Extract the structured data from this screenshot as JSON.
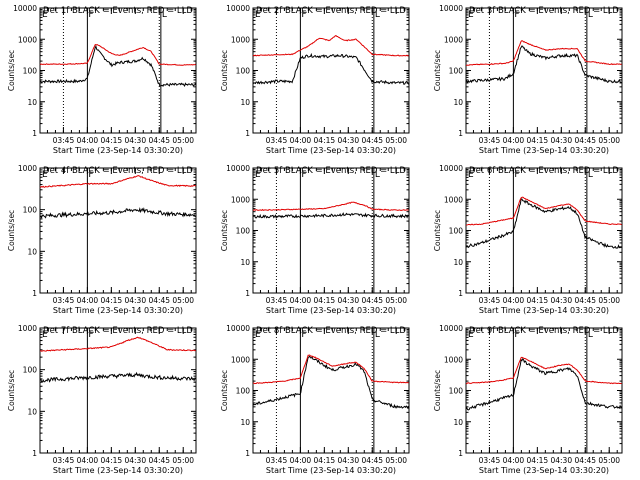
{
  "figure": {
    "colors": {
      "events": "#000000",
      "lld": "#e00000",
      "axes": "#000000",
      "background": "#ffffff"
    }
  },
  "chart_data": [
    {
      "type": "line",
      "title": "Det 1f BLACK = Events, RED = LLD",
      "xlabel": "Start Time (23-Sep-14 03:30:20)",
      "ylabel": "Counts/sec",
      "y_scale": "log",
      "ylim": [
        1,
        10000
      ],
      "y_ticks": [
        "1",
        "10",
        "100",
        "1000",
        "10000"
      ],
      "x_ticks": [
        "03:45",
        "04:00",
        "04:15",
        "04:30",
        "04:45",
        "05:00"
      ],
      "markers": [
        {
          "label": "",
          "style": "dotted",
          "x": "03:45"
        },
        {
          "label": "F",
          "style": "solid",
          "x": "04:00"
        },
        {
          "label": "",
          "style": "dotted",
          "x": "04:45"
        },
        {
          "label": "L",
          "style": "solid",
          "x": "04:46"
        }
      ],
      "corner_label": "E",
      "series": [
        {
          "name": "Events",
          "color": "#000000",
          "x": [
            "03:30",
            "03:45",
            "03:55",
            "04:00",
            "04:05",
            "04:08",
            "04:15",
            "04:20",
            "04:30",
            "04:35",
            "04:40",
            "04:45",
            "05:00",
            "05:08"
          ],
          "values": [
            45,
            45,
            45,
            55,
            600,
            350,
            150,
            180,
            200,
            250,
            150,
            35,
            35,
            35
          ]
        },
        {
          "name": "LLD",
          "color": "#e00000",
          "x": [
            "03:30",
            "03:45",
            "03:55",
            "04:00",
            "04:05",
            "04:08",
            "04:15",
            "04:20",
            "04:30",
            "04:35",
            "04:40",
            "04:45",
            "05:00",
            "05:08"
          ],
          "values": [
            160,
            160,
            165,
            170,
            700,
            600,
            350,
            300,
            450,
            550,
            400,
            160,
            150,
            155
          ]
        }
      ]
    },
    {
      "type": "line",
      "title": "Det 2f BLACK = Events, RED = LLD",
      "xlabel": "Start Time (23-Sep-14 03:30:20)",
      "ylabel": "Counts/sec",
      "y_scale": "log",
      "ylim": [
        1,
        10000
      ],
      "y_ticks": [
        "1",
        "10",
        "100",
        "1000",
        "10000"
      ],
      "x_ticks": [
        "03:45",
        "04:00",
        "04:15",
        "04:30",
        "04:45",
        "05:00"
      ],
      "markers": [
        {
          "label": "",
          "style": "dotted",
          "x": "03:45"
        },
        {
          "label": "F",
          "style": "solid",
          "x": "04:00"
        },
        {
          "label": "",
          "style": "dotted",
          "x": "04:45"
        },
        {
          "label": "L",
          "style": "solid",
          "x": "04:46"
        }
      ],
      "corner_label": "E",
      "series": [
        {
          "name": "Events",
          "color": "#000000",
          "x": [
            "03:30",
            "03:45",
            "03:55",
            "04:00",
            "04:05",
            "04:15",
            "04:25",
            "04:35",
            "04:45",
            "05:00",
            "05:08"
          ],
          "values": [
            40,
            45,
            45,
            250,
            300,
            280,
            300,
            260,
            45,
            40,
            40
          ]
        },
        {
          "name": "LLD",
          "color": "#e00000",
          "x": [
            "03:30",
            "03:45",
            "03:55",
            "04:00",
            "04:05",
            "04:12",
            "04:18",
            "04:22",
            "04:28",
            "04:35",
            "04:45",
            "05:00",
            "05:08"
          ],
          "values": [
            300,
            320,
            330,
            450,
            600,
            1100,
            900,
            1300,
            900,
            1000,
            330,
            300,
            300
          ]
        }
      ]
    },
    {
      "type": "line",
      "title": "Det 3f BLACK = Events, RED = LLD",
      "xlabel": "Start Time (23-Sep-14 03:30:20)",
      "ylabel": "Counts/sec",
      "y_scale": "log",
      "ylim": [
        1,
        10000
      ],
      "y_ticks": [
        "1",
        "10",
        "100",
        "1000",
        "10000"
      ],
      "x_ticks": [
        "03:45",
        "04:00",
        "04:15",
        "04:30",
        "04:45",
        "05:00"
      ],
      "markers": [
        {
          "label": "",
          "style": "dotted",
          "x": "03:45"
        },
        {
          "label": "F",
          "style": "solid",
          "x": "04:00"
        },
        {
          "label": "",
          "style": "dotted",
          "x": "04:45"
        },
        {
          "label": "L",
          "style": "solid",
          "x": "04:46"
        }
      ],
      "corner_label": "E",
      "series": [
        {
          "name": "Events",
          "color": "#000000",
          "x": [
            "03:30",
            "03:45",
            "03:55",
            "04:00",
            "04:05",
            "04:10",
            "04:20",
            "04:30",
            "04:40",
            "04:45",
            "05:00",
            "05:08"
          ],
          "values": [
            45,
            50,
            55,
            80,
            600,
            350,
            250,
            300,
            300,
            70,
            45,
            45
          ]
        },
        {
          "name": "LLD",
          "color": "#e00000",
          "x": [
            "03:30",
            "03:45",
            "03:55",
            "04:00",
            "04:05",
            "04:10",
            "04:20",
            "04:30",
            "04:40",
            "04:45",
            "05:00",
            "05:08"
          ],
          "values": [
            150,
            160,
            170,
            200,
            900,
            700,
            450,
            500,
            500,
            200,
            160,
            160
          ]
        }
      ]
    },
    {
      "type": "line",
      "title": "Det 4f BLACK = Events, RED = LLD",
      "xlabel": "Start Time (23-Sep-14 03:30:20)",
      "ylabel": "Counts/sec",
      "y_scale": "log",
      "ylim": [
        1,
        1000
      ],
      "y_ticks": [
        "1",
        "10",
        "100",
        "1000"
      ],
      "x_ticks": [
        "03:45",
        "04:00",
        "04:15",
        "04:30",
        "04:45",
        "05:00"
      ],
      "markers": [
        {
          "label": "F",
          "style": "solid",
          "x": "04:00"
        }
      ],
      "corner_label": "E",
      "series": [
        {
          "name": "Events",
          "color": "#000000",
          "x": [
            "03:30",
            "03:45",
            "04:00",
            "04:15",
            "04:30",
            "04:40",
            "04:50",
            "05:08"
          ],
          "values": [
            70,
            75,
            80,
            85,
            100,
            90,
            80,
            75
          ]
        },
        {
          "name": "LLD",
          "color": "#e00000",
          "x": [
            "03:30",
            "03:45",
            "04:00",
            "04:15",
            "04:25",
            "04:32",
            "04:40",
            "04:50",
            "05:08"
          ],
          "values": [
            350,
            380,
            420,
            420,
            550,
            650,
            500,
            380,
            370
          ]
        }
      ]
    },
    {
      "type": "line",
      "title": "Det 5f BLACK = Events, RED = LLD",
      "xlabel": "Start Time (23-Sep-14 03:30:20)",
      "ylabel": "Counts/sec",
      "y_scale": "log",
      "ylim": [
        1,
        10000
      ],
      "y_ticks": [
        "1",
        "10",
        "100",
        "1000",
        "10000"
      ],
      "x_ticks": [
        "03:45",
        "04:00",
        "04:15",
        "04:30",
        "04:45",
        "05:00"
      ],
      "markers": [
        {
          "label": "",
          "style": "dotted",
          "x": "03:45"
        },
        {
          "label": "F",
          "style": "solid",
          "x": "04:00"
        },
        {
          "label": "",
          "style": "dotted",
          "x": "04:45"
        },
        {
          "label": "L",
          "style": "solid",
          "x": "04:46"
        }
      ],
      "corner_label": "E",
      "series": [
        {
          "name": "Events",
          "color": "#000000",
          "x": [
            "03:30",
            "03:45",
            "04:00",
            "04:15",
            "04:30",
            "04:45",
            "05:00",
            "05:08"
          ],
          "values": [
            280,
            280,
            290,
            300,
            330,
            300,
            290,
            290
          ]
        },
        {
          "name": "LLD",
          "color": "#e00000",
          "x": [
            "03:30",
            "03:45",
            "04:00",
            "04:15",
            "04:25",
            "04:33",
            "04:40",
            "04:45",
            "05:00",
            "05:08"
          ],
          "values": [
            450,
            460,
            480,
            500,
            650,
            800,
            650,
            480,
            450,
            450
          ]
        }
      ]
    },
    {
      "type": "line",
      "title": "Det 6f BLACK = Events, RED = LLD",
      "xlabel": "Start Time (23-Sep-14 03:30:20)",
      "ylabel": "Counts/sec",
      "y_scale": "log",
      "ylim": [
        1,
        10000
      ],
      "y_ticks": [
        "1",
        "10",
        "100",
        "1000",
        "10000"
      ],
      "x_ticks": [
        "03:45",
        "04:00",
        "04:15",
        "04:30",
        "04:45",
        "05:00"
      ],
      "markers": [
        {
          "label": "",
          "style": "dotted",
          "x": "03:45"
        },
        {
          "label": "F",
          "style": "solid",
          "x": "04:00"
        },
        {
          "label": "",
          "style": "dotted",
          "x": "04:45"
        },
        {
          "label": "L",
          "style": "solid",
          "x": "04:46"
        }
      ],
      "corner_label": "E",
      "series": [
        {
          "name": "Events",
          "color": "#000000",
          "x": [
            "03:30",
            "03:40",
            "03:50",
            "04:00",
            "04:05",
            "04:10",
            "04:20",
            "04:30",
            "04:35",
            "04:40",
            "04:45",
            "05:00",
            "05:08"
          ],
          "values": [
            30,
            40,
            60,
            90,
            1000,
            700,
            400,
            500,
            550,
            350,
            60,
            30,
            30
          ]
        },
        {
          "name": "LLD",
          "color": "#e00000",
          "x": [
            "03:30",
            "03:40",
            "03:50",
            "04:00",
            "04:05",
            "04:10",
            "04:20",
            "04:30",
            "04:35",
            "04:40",
            "04:45",
            "05:00",
            "05:08"
          ],
          "values": [
            150,
            160,
            200,
            250,
            1200,
            900,
            500,
            650,
            700,
            450,
            200,
            160,
            160
          ]
        }
      ]
    },
    {
      "type": "line",
      "title": "Det 7f BLACK = Events, RED = LLD",
      "xlabel": "Start Time (23-Sep-14 03:30:20)",
      "ylabel": "Counts/sec",
      "y_scale": "log",
      "ylim": [
        1,
        1000
      ],
      "y_ticks": [
        "1",
        "10",
        "100",
        "1000"
      ],
      "x_ticks": [
        "03:45",
        "04:00",
        "04:15",
        "04:30",
        "04:45",
        "05:00"
      ],
      "markers": [
        {
          "label": "F",
          "style": "solid",
          "x": "04:00"
        }
      ],
      "corner_label": "E",
      "series": [
        {
          "name": "Events",
          "color": "#000000",
          "x": [
            "03:30",
            "03:45",
            "04:00",
            "04:15",
            "04:30",
            "04:45",
            "05:08"
          ],
          "values": [
            55,
            60,
            65,
            70,
            75,
            65,
            60
          ]
        },
        {
          "name": "LLD",
          "color": "#e00000",
          "x": [
            "03:30",
            "03:45",
            "04:00",
            "04:15",
            "04:25",
            "04:32",
            "04:40",
            "04:50",
            "05:08"
          ],
          "values": [
            280,
            300,
            320,
            350,
            500,
            600,
            450,
            300,
            290
          ]
        }
      ]
    },
    {
      "type": "line",
      "title": "Det 8f BLACK = Events, RED = LLD",
      "xlabel": "Start Time (23-Sep-14 03:30:20)",
      "ylabel": "Counts/sec",
      "y_scale": "log",
      "ylim": [
        1,
        10000
      ],
      "y_ticks": [
        "1",
        "10",
        "100",
        "1000",
        "10000"
      ],
      "x_ticks": [
        "03:45",
        "04:00",
        "04:15",
        "04:30",
        "04:45",
        "05:00"
      ],
      "markers": [
        {
          "label": "",
          "style": "dotted",
          "x": "03:45"
        },
        {
          "label": "F",
          "style": "solid",
          "x": "04:00"
        },
        {
          "label": "",
          "style": "dotted",
          "x": "04:45"
        },
        {
          "label": "L",
          "style": "solid",
          "x": "04:46"
        }
      ],
      "corner_label": "E",
      "series": [
        {
          "name": "Events",
          "color": "#000000",
          "x": [
            "03:30",
            "03:40",
            "03:50",
            "04:00",
            "04:05",
            "04:10",
            "04:20",
            "04:30",
            "04:35",
            "04:40",
            "04:45",
            "05:00",
            "05:08"
          ],
          "values": [
            35,
            45,
            60,
            80,
            1300,
            900,
            450,
            600,
            700,
            400,
            50,
            30,
            30
          ]
        },
        {
          "name": "LLD",
          "color": "#e00000",
          "x": [
            "03:30",
            "03:40",
            "03:50",
            "04:00",
            "04:05",
            "04:10",
            "04:20",
            "04:30",
            "04:35",
            "04:40",
            "04:45",
            "05:00",
            "05:08"
          ],
          "values": [
            170,
            180,
            200,
            250,
            1400,
            1100,
            600,
            750,
            800,
            500,
            200,
            180,
            180
          ]
        }
      ]
    },
    {
      "type": "line",
      "title": "Det 9f BLACK = Events, RED = LLD",
      "xlabel": "Start Time (23-Sep-14 03:30:20)",
      "ylabel": "Counts/sec",
      "y_scale": "log",
      "ylim": [
        1,
        10000
      ],
      "y_ticks": [
        "1",
        "10",
        "100",
        "1000",
        "10000"
      ],
      "x_ticks": [
        "03:45",
        "04:00",
        "04:15",
        "04:30",
        "04:45",
        "05:00"
      ],
      "markers": [
        {
          "label": "",
          "style": "dotted",
          "x": "03:45"
        },
        {
          "label": "F",
          "style": "solid",
          "x": "04:00"
        },
        {
          "label": "",
          "style": "dotted",
          "x": "04:45"
        },
        {
          "label": "L",
          "style": "solid",
          "x": "04:46"
        }
      ],
      "corner_label": "E",
      "series": [
        {
          "name": "Events",
          "color": "#000000",
          "x": [
            "03:30",
            "03:40",
            "03:50",
            "04:00",
            "04:05",
            "04:10",
            "04:20",
            "04:30",
            "04:35",
            "04:40",
            "04:45",
            "05:00",
            "05:08"
          ],
          "values": [
            25,
            35,
            50,
            70,
            1000,
            650,
            350,
            450,
            500,
            300,
            40,
            30,
            30
          ]
        },
        {
          "name": "LLD",
          "color": "#e00000",
          "x": [
            "03:30",
            "03:40",
            "03:50",
            "04:00",
            "04:05",
            "04:10",
            "04:20",
            "04:30",
            "04:35",
            "04:40",
            "04:45",
            "05:00",
            "05:08"
          ],
          "values": [
            170,
            180,
            200,
            250,
            1200,
            900,
            500,
            650,
            700,
            450,
            200,
            170,
            170
          ]
        }
      ]
    }
  ]
}
